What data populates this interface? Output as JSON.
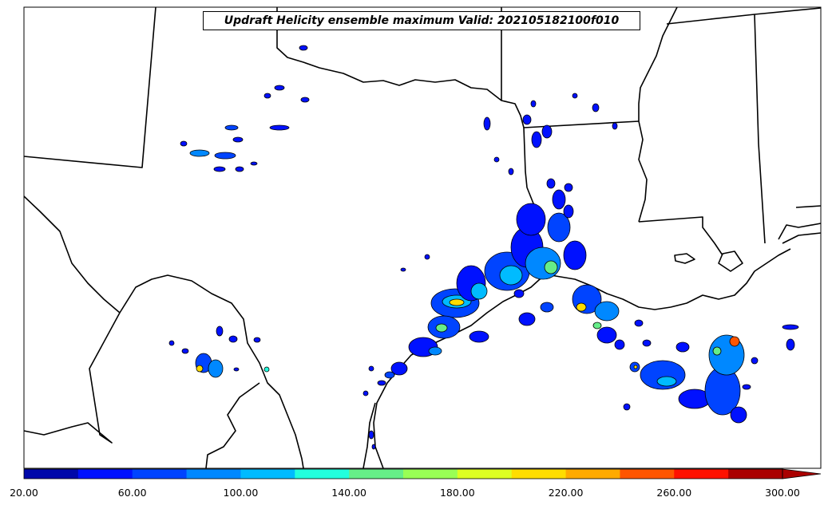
{
  "title": "Updraft Helicity ensemble maximum Valid: 202105182100f010",
  "colorbar": {
    "tick_labels": [
      "20.00",
      "60.00",
      "100.00",
      "140.00",
      "180.00",
      "220.00",
      "260.00",
      "300.00"
    ],
    "colors": [
      "#0008aa",
      "#0011ff",
      "#0044ff",
      "#0088ff",
      "#00bbff",
      "#22ffdd",
      "#66ee88",
      "#99ff55",
      "#ddff22",
      "#ffdd00",
      "#ffaa00",
      "#ff5500",
      "#ff1100",
      "#aa0000"
    ]
  },
  "map_colors": {
    "outline": "#000000",
    "fill_low": "#0011ff",
    "fill_mid": "#00bbff",
    "fill_high": "#66ee88",
    "fill_peak": "#ffdd00"
  }
}
